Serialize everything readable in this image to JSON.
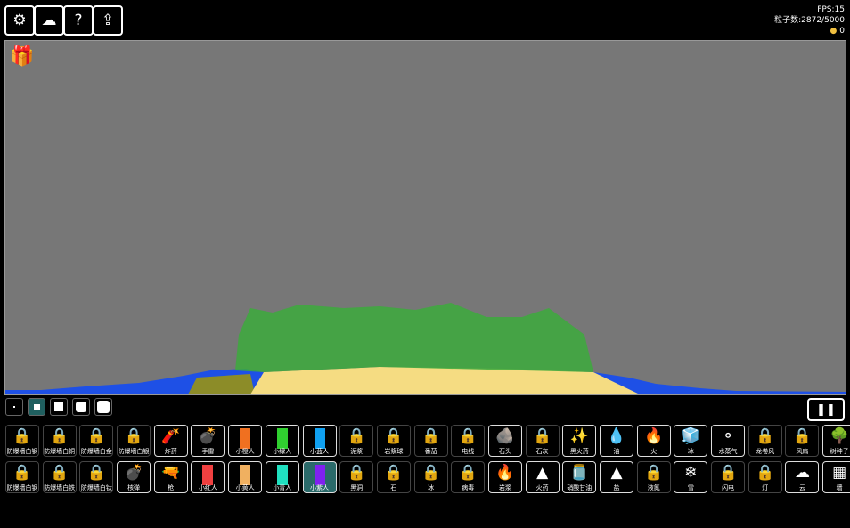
{
  "toolbar": [
    {
      "name": "settings",
      "icon": "⚙"
    },
    {
      "name": "cloud",
      "icon": "☁"
    },
    {
      "name": "help",
      "icon": "?"
    },
    {
      "name": "share",
      "icon": "⇪"
    }
  ],
  "stats": {
    "fps": "FPS:15",
    "particles": "粒子数:2872/5000",
    "coins": "0"
  },
  "brushes": [
    "tiny",
    "small",
    "medium",
    "large",
    "xlarge"
  ],
  "selected_brush": 1,
  "pause_icon": "❚❚",
  "elements": [
    {
      "label": "防爆墙白钢",
      "icon": "lock"
    },
    {
      "label": "防爆墙白铜",
      "icon": "lock"
    },
    {
      "label": "防爆墙白金",
      "icon": "lock"
    },
    {
      "label": "防爆墙白银",
      "icon": "lock"
    },
    {
      "label": "炸药",
      "icon": "tnt",
      "unlocked": true
    },
    {
      "label": "手雷",
      "icon": "grenade",
      "unlocked": true
    },
    {
      "label": "小橙人",
      "icon": "person",
      "color": "#f07020",
      "unlocked": true
    },
    {
      "label": "小绿人",
      "icon": "person",
      "color": "#30d030",
      "unlocked": true
    },
    {
      "label": "小蓝人",
      "icon": "person",
      "color": "#10a0f0",
      "unlocked": true
    },
    {
      "label": "泥浆",
      "icon": "lock"
    },
    {
      "label": "岩浆球",
      "icon": "lock"
    },
    {
      "label": "番茄",
      "icon": "lock"
    },
    {
      "label": "电线",
      "icon": "lock"
    },
    {
      "label": "石头",
      "icon": "rock",
      "unlocked": true
    },
    {
      "label": "石灰",
      "icon": "lock"
    },
    {
      "label": "黑火药",
      "icon": "gunpowder",
      "unlocked": true
    },
    {
      "label": "油",
      "icon": "oil",
      "unlocked": true
    },
    {
      "label": "火",
      "icon": "fire",
      "unlocked": true
    },
    {
      "label": "冰",
      "icon": "ice",
      "unlocked": true
    },
    {
      "label": "水蒸气",
      "icon": "steam",
      "unlocked": true
    },
    {
      "label": "龙卷风",
      "icon": "lock"
    },
    {
      "label": "风扇",
      "icon": "lock"
    },
    {
      "label": "树种子",
      "icon": "tree",
      "unlocked": true
    },
    {
      "label": "防爆墙白钢",
      "icon": "lock"
    },
    {
      "label": "防爆墙白铁",
      "icon": "lock"
    },
    {
      "label": "防爆墙白钛",
      "icon": "lock"
    },
    {
      "label": "核弹",
      "icon": "bomb",
      "unlocked": true
    },
    {
      "label": "枪",
      "icon": "gun",
      "unlocked": true
    },
    {
      "label": "小红人",
      "icon": "person",
      "color": "#f04040",
      "unlocked": true
    },
    {
      "label": "小黄人",
      "icon": "person",
      "color": "#f0b060",
      "unlocked": true
    },
    {
      "label": "小青人",
      "icon": "person",
      "color": "#20e0c0",
      "unlocked": true
    },
    {
      "label": "小紫人",
      "icon": "person",
      "color": "#8020f0",
      "unlocked": true,
      "selected": true
    },
    {
      "label": "黑洞",
      "icon": "lock"
    },
    {
      "label": "石",
      "icon": "lock"
    },
    {
      "label": "冰",
      "icon": "lock"
    },
    {
      "label": "病毒",
      "icon": "lock"
    },
    {
      "label": "岩浆",
      "icon": "lava",
      "unlocked": true
    },
    {
      "label": "火药",
      "icon": "powder",
      "unlocked": true
    },
    {
      "label": "硝酸甘油",
      "icon": "jar",
      "unlocked": true
    },
    {
      "label": "盐",
      "icon": "salt",
      "unlocked": true
    },
    {
      "label": "液氮",
      "icon": "lock"
    },
    {
      "label": "雪",
      "icon": "snow",
      "unlocked": true
    },
    {
      "label": "闪电",
      "icon": "lock"
    },
    {
      "label": "灯",
      "icon": "lock"
    },
    {
      "label": "云",
      "icon": "cloud",
      "unlocked": true
    },
    {
      "label": "墙",
      "icon": "wall",
      "unlocked": true
    }
  ],
  "colors": {
    "canvas": "#777777",
    "water": "#1e50e6",
    "sand": "#f5dc82",
    "grass": "#3caa3c",
    "mud": "#8c8c28"
  }
}
